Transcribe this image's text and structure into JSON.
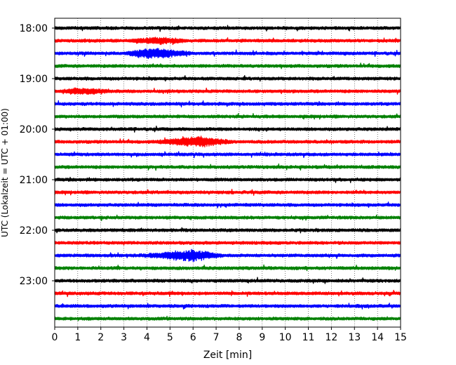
{
  "chart_data": {
    "type": "line",
    "title": "",
    "xlabel": "Zeit  [min]",
    "ylabel": "UTC (Lokalzeit = UTC + 01:00)",
    "xlim": [
      0,
      15
    ],
    "x_ticks": [
      "0",
      "1",
      "2",
      "3",
      "4",
      "5",
      "6",
      "7",
      "8",
      "9",
      "10",
      "11",
      "12",
      "13",
      "14",
      "15"
    ],
    "y_tick_labels": [
      "18:00",
      "19:00",
      "20:00",
      "21:00",
      "22:00",
      "23:00"
    ],
    "vertical_grid": "dotted",
    "trace_interval_minutes": 15,
    "trace_start": "18:00",
    "trace_color_cycle": [
      "#000000",
      "#ff0000",
      "#0000ff",
      "#008000"
    ],
    "traces": [
      {
        "time": "18:00",
        "color": "#000000",
        "events": []
      },
      {
        "time": "18:15",
        "color": "#ff0000",
        "events": [
          {
            "start_min": 3.2,
            "peak_min": 4.5,
            "end_min": 5.8,
            "amplitude": "medium"
          }
        ]
      },
      {
        "time": "18:30",
        "color": "#0000ff",
        "events": [
          {
            "start_min": 3.0,
            "peak_min": 4.2,
            "end_min": 6.0,
            "amplitude": "large"
          }
        ]
      },
      {
        "time": "18:45",
        "color": "#008000",
        "events": []
      },
      {
        "time": "19:00",
        "color": "#000000",
        "events": []
      },
      {
        "time": "19:15",
        "color": "#ff0000",
        "events": [
          {
            "start_min": 0.2,
            "peak_min": 1.0,
            "end_min": 2.6,
            "amplitude": "medium"
          }
        ]
      },
      {
        "time": "19:30",
        "color": "#0000ff",
        "events": []
      },
      {
        "time": "19:45",
        "color": "#008000",
        "events": []
      },
      {
        "time": "20:00",
        "color": "#000000",
        "events": []
      },
      {
        "time": "20:15",
        "color": "#ff0000",
        "events": [
          {
            "start_min": 4.3,
            "peak_min": 6.2,
            "end_min": 7.8,
            "amplitude": "large"
          }
        ]
      },
      {
        "time": "20:30",
        "color": "#0000ff",
        "events": []
      },
      {
        "time": "20:45",
        "color": "#008000",
        "events": []
      },
      {
        "time": "21:00",
        "color": "#000000",
        "events": []
      },
      {
        "time": "21:15",
        "color": "#ff0000",
        "events": []
      },
      {
        "time": "21:30",
        "color": "#0000ff",
        "events": []
      },
      {
        "time": "21:45",
        "color": "#008000",
        "events": []
      },
      {
        "time": "22:00",
        "color": "#000000",
        "events": []
      },
      {
        "time": "22:15",
        "color": "#ff0000",
        "events": []
      },
      {
        "time": "22:30",
        "color": "#0000ff",
        "events": [
          {
            "start_min": 3.6,
            "peak_min": 6.0,
            "end_min": 7.4,
            "amplitude": "large"
          }
        ]
      },
      {
        "time": "22:45",
        "color": "#008000",
        "events": []
      },
      {
        "time": "23:00",
        "color": "#000000",
        "events": []
      },
      {
        "time": "23:15",
        "color": "#ff0000",
        "events": []
      },
      {
        "time": "23:30",
        "color": "#0000ff",
        "events": []
      },
      {
        "time": "23:45",
        "color": "#008000",
        "events": []
      }
    ]
  }
}
